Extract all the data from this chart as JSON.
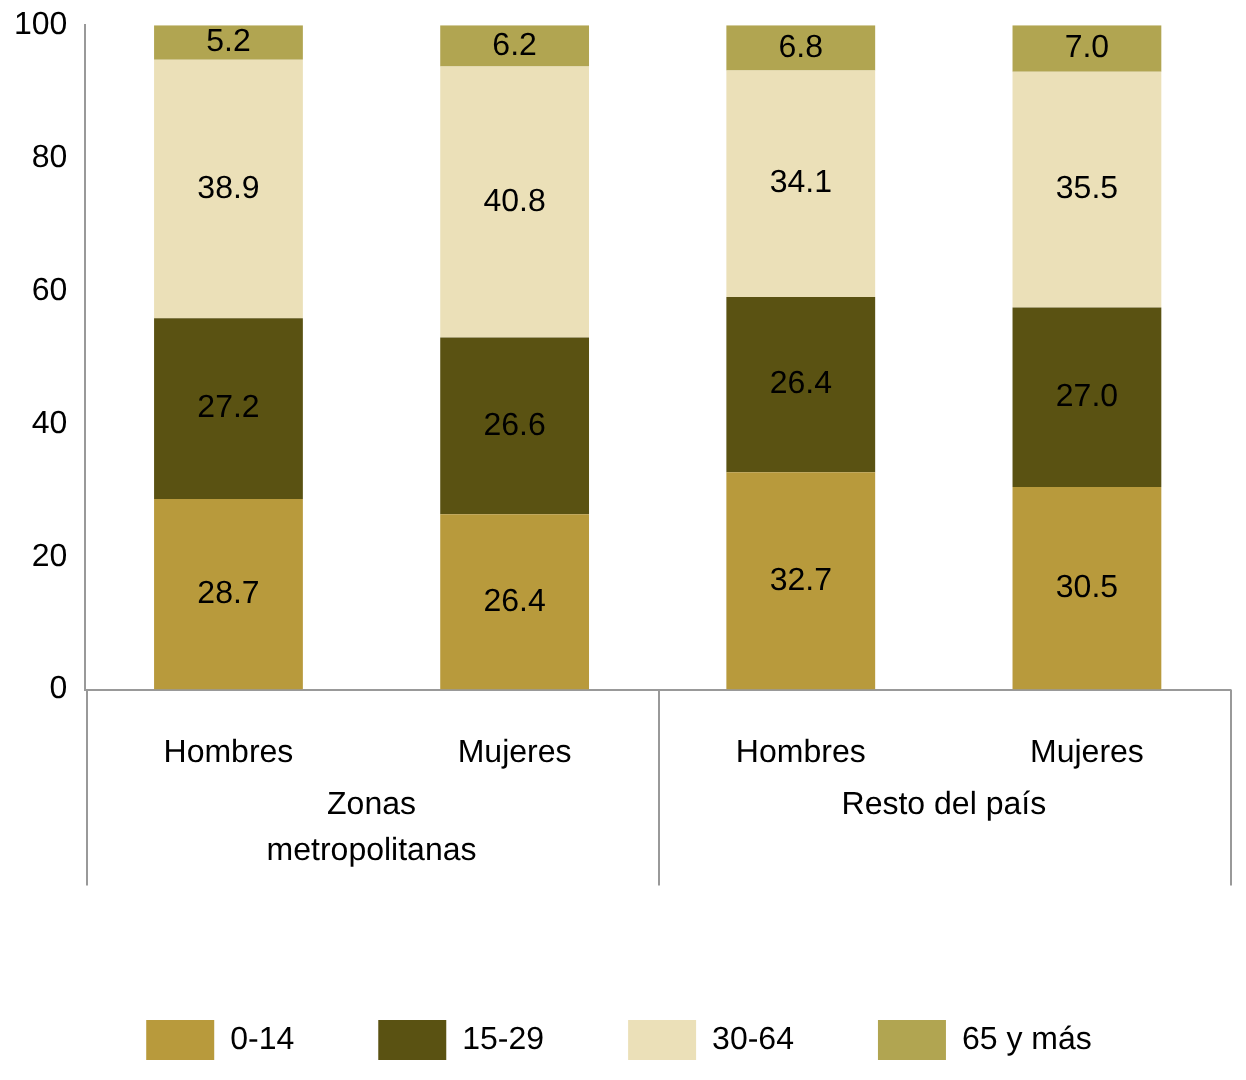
{
  "chart_data": {
    "type": "bar",
    "stacked": true,
    "categories": [
      "Hombres",
      "Mujeres",
      "Hombres",
      "Mujeres"
    ],
    "series": [
      {
        "name": "0-14",
        "color": "#b89a3c",
        "values": [
          28.7,
          26.4,
          32.7,
          30.5
        ],
        "value_labels": [
          "28.7",
          "26.4",
          "32.7",
          "30.5"
        ]
      },
      {
        "name": "15-29",
        "color": "#5a5212",
        "values": [
          27.2,
          26.6,
          26.4,
          27.0
        ],
        "value_labels": [
          "27.2",
          "26.6",
          "26.4",
          "27.0"
        ]
      },
      {
        "name": "30-64",
        "color": "#ebe0b8",
        "values": [
          38.9,
          40.8,
          34.1,
          35.5
        ],
        "value_labels": [
          "38.9",
          "40.8",
          "34.1",
          "35.5"
        ]
      },
      {
        "name": "65 y más",
        "color": "#b1a551",
        "values": [
          5.2,
          6.2,
          6.8,
          7.0
        ],
        "value_labels": [
          "5.2",
          "6.2",
          "6.8",
          "7.0"
        ]
      }
    ],
    "ylim": [
      0,
      100
    ],
    "yticks": [
      0,
      20,
      40,
      60,
      80,
      100
    ],
    "grid": false,
    "legend": "bottom",
    "annotations": [
      "Zonas metropolitanas",
      "Resto del país"
    ]
  }
}
